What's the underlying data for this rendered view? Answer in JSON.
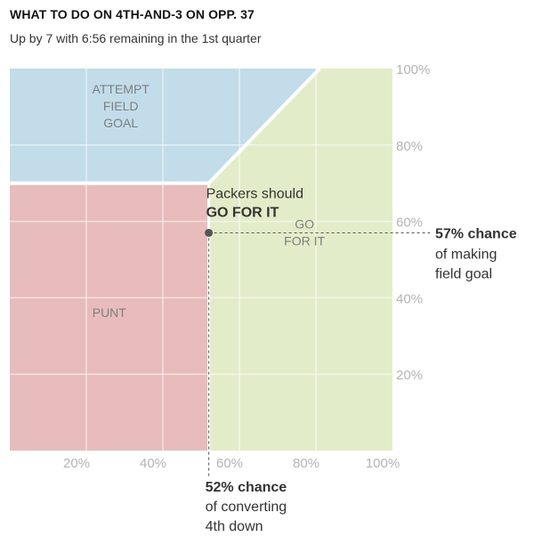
{
  "header": {
    "title": "WHAT TO DO ON 4TH-AND-3 ON OPP. 37",
    "subtitle": "Up by 7 with 6:56 remaining in the 1st quarter"
  },
  "chart_data": {
    "type": "area",
    "title": "WHAT TO DO ON 4TH-AND-3 ON OPP. 37",
    "subtitle": "Up by 7 with 6:56 remaining in the 1st quarter",
    "x_axis": {
      "range": [
        0,
        100
      ],
      "ticks": [
        "20%",
        "40%",
        "60%",
        "80%",
        "100%"
      ],
      "tick_values": [
        20,
        40,
        60,
        80,
        100
      ]
    },
    "y_axis": {
      "range": [
        0,
        100
      ],
      "ticks": [
        "20%",
        "40%",
        "60%",
        "80%",
        "100%"
      ],
      "tick_values": [
        20,
        40,
        60,
        80,
        100
      ],
      "position": "right"
    },
    "grid": true,
    "regions": [
      {
        "name": "ATTEMPT FIELD GOAL",
        "lines": [
          "ATTEMPT",
          "FIELD",
          "GOAL"
        ],
        "color": "#c2dcea",
        "polygon": [
          [
            0,
            70
          ],
          [
            52,
            70
          ],
          [
            81,
            100
          ],
          [
            0,
            100
          ]
        ],
        "label_at": [
          29,
          89
        ]
      },
      {
        "name": "PUNT",
        "lines": [
          "PUNT"
        ],
        "color": "#e8bcbc",
        "polygon": [
          [
            0,
            0
          ],
          [
            52,
            0
          ],
          [
            52,
            70
          ],
          [
            0,
            70
          ]
        ],
        "label_at": [
          26,
          35
        ]
      },
      {
        "name": "GO FOR IT",
        "lines": [
          "GO",
          "FOR IT"
        ],
        "color": "#e3ecc9",
        "polygon": [
          [
            52,
            0
          ],
          [
            100,
            0
          ],
          [
            100,
            100
          ],
          [
            81,
            100
          ],
          [
            52,
            70
          ]
        ],
        "label_at": [
          77,
          56
        ]
      }
    ],
    "point": {
      "x": 52,
      "y": 57
    },
    "annotations": {
      "recommendation": {
        "line1": "Packers should",
        "line2": "GO FOR IT"
      },
      "y_value": {
        "strong": "57% chance",
        "line2": "of making",
        "line3": "field goal"
      },
      "x_value": {
        "strong": "52% chance",
        "line2": "of converting",
        "line3": "4th down"
      }
    },
    "colors": {
      "boundary": "#ffffff",
      "grid": "#ffffff",
      "point": "#555555",
      "dash": "#555555"
    }
  }
}
